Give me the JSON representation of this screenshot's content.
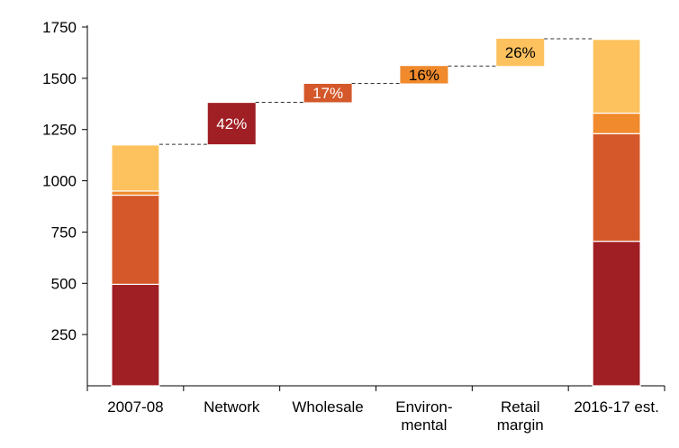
{
  "chart_data": {
    "type": "bar",
    "subtype": "waterfall",
    "ylim": [
      0,
      1750
    ],
    "yticks": [
      250,
      500,
      750,
      1000,
      1250,
      1500,
      1750
    ],
    "grid": false,
    "categories": [
      {
        "label": [
          "2007-08"
        ]
      },
      {
        "label": [
          "Network"
        ]
      },
      {
        "label": [
          "Wholesale"
        ]
      },
      {
        "label": [
          "Environ-",
          "mental"
        ]
      },
      {
        "label": [
          "Retail",
          "margin"
        ]
      },
      {
        "label": [
          "2016-17 est."
        ]
      }
    ],
    "components": [
      {
        "key": "network",
        "color": "#A01F24"
      },
      {
        "key": "wholesale",
        "color": "#D4582A"
      },
      {
        "key": "environmental",
        "color": "#F08A2C"
      },
      {
        "key": "retail",
        "color": "#FDC25E"
      }
    ],
    "totals": [
      {
        "category_index": 0,
        "stack": [
          495,
          435,
          20,
          225
        ],
        "total": 1175
      },
      {
        "category_index": 5,
        "stack": [
          705,
          525,
          100,
          360
        ],
        "total": 1690
      }
    ],
    "increments": [
      {
        "category_index": 1,
        "component": "network",
        "from": 1178,
        "to": 1380,
        "label": "42%",
        "label_color": "#ffffff"
      },
      {
        "category_index": 2,
        "component": "wholesale",
        "from": 1383,
        "to": 1473,
        "label": "17%",
        "label_color": "#ffffff"
      },
      {
        "category_index": 3,
        "component": "environmental",
        "from": 1475,
        "to": 1560,
        "label": "16%",
        "label_color": "#000000"
      },
      {
        "category_index": 4,
        "component": "retail",
        "from": 1560,
        "to": 1693,
        "label": "26%",
        "label_color": "#000000"
      }
    ]
  }
}
